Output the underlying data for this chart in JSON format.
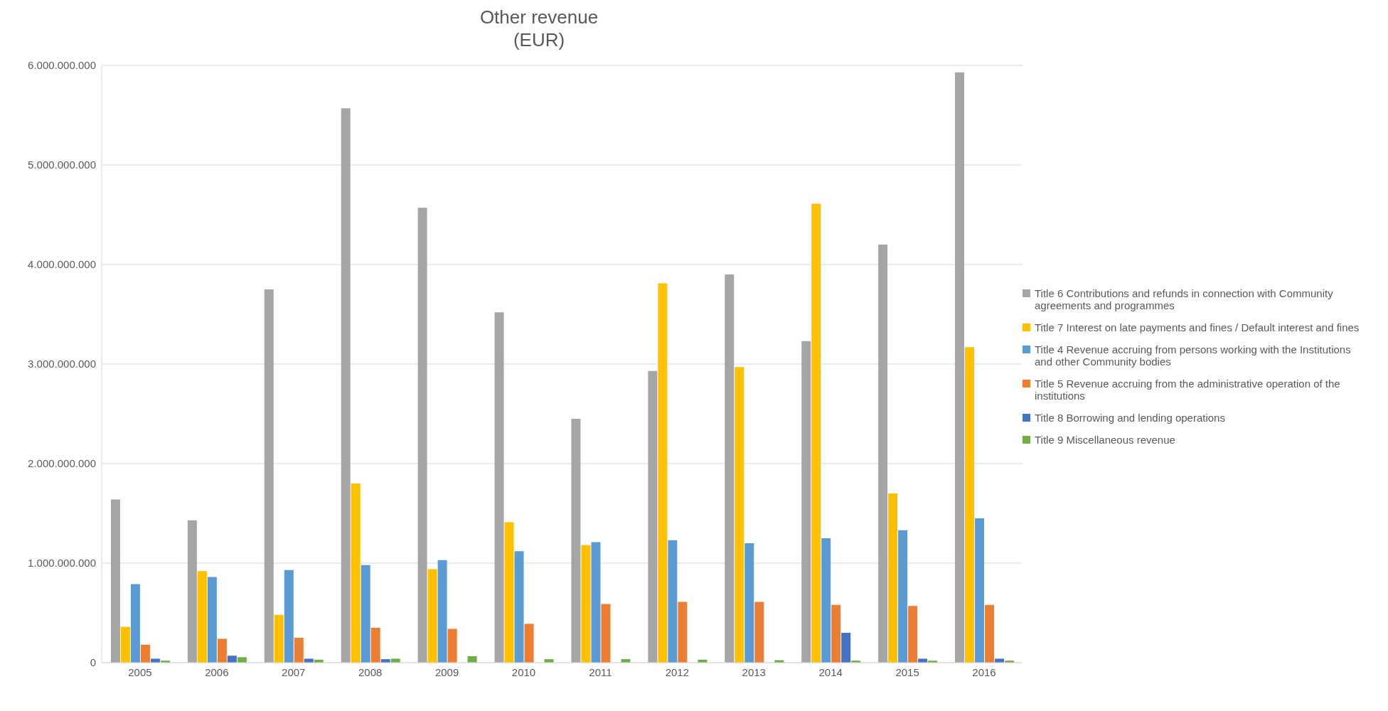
{
  "chart_data": {
    "type": "bar",
    "title": "Other revenue\n(EUR)",
    "categories": [
      "2005",
      "2006",
      "2007",
      "2008",
      "2009",
      "2010",
      "2011",
      "2012",
      "2013",
      "2014",
      "2015",
      "2016"
    ],
    "series": [
      {
        "name": "Title 6 Contributions and refunds in connection with Community agreements and programmes",
        "color": "#a5a5a5",
        "values": [
          1640000000,
          1430000000,
          3750000000,
          5570000000,
          4570000000,
          3520000000,
          2450000000,
          2930000000,
          3900000000,
          3230000000,
          4200000000,
          5930000000
        ]
      },
      {
        "name": "Title 7 Interest on late payments and fines / Default interest and fines",
        "color": "#ffc000",
        "values": [
          360000000,
          920000000,
          480000000,
          1800000000,
          940000000,
          1410000000,
          1180000000,
          3810000000,
          2970000000,
          4610000000,
          1700000000,
          3170000000
        ]
      },
      {
        "name": "Title 4 Revenue accruing from persons working with the Institutions and other Community bodies",
        "color": "#5b9bd5",
        "values": [
          790000000,
          860000000,
          930000000,
          980000000,
          1030000000,
          1120000000,
          1210000000,
          1230000000,
          1200000000,
          1250000000,
          1330000000,
          1450000000
        ]
      },
      {
        "name": "Title 5 Revenue accruing from the administrative operation of the institutions",
        "color": "#ed7d31",
        "values": [
          180000000,
          240000000,
          250000000,
          350000000,
          340000000,
          390000000,
          590000000,
          610000000,
          610000000,
          580000000,
          570000000,
          580000000
        ]
      },
      {
        "name": "Title 8 Borrowing and lending operations",
        "color": "#4472c4",
        "values": [
          40000000,
          70000000,
          40000000,
          35000000,
          0,
          0,
          0,
          0,
          0,
          300000000,
          40000000,
          40000000
        ]
      },
      {
        "name": "Title 9 Miscellaneous revenue",
        "color": "#70ad47",
        "values": [
          20000000,
          55000000,
          30000000,
          40000000,
          65000000,
          35000000,
          35000000,
          30000000,
          25000000,
          20000000,
          20000000,
          20000000
        ]
      }
    ],
    "ylim": [
      0,
      6000000000
    ],
    "yticks": [
      {
        "value": 0,
        "label": "0"
      },
      {
        "value": 1000000000,
        "label": "1.000.000.000"
      },
      {
        "value": 2000000000,
        "label": "2.000.000.000"
      },
      {
        "value": 3000000000,
        "label": "3.000.000.000"
      },
      {
        "value": 4000000000,
        "label": "4.000.000.000"
      },
      {
        "value": 5000000000,
        "label": "5.000.000.000"
      },
      {
        "value": 6000000000,
        "label": "6.000.000.000"
      }
    ],
    "grid": "y",
    "legend": "right"
  }
}
